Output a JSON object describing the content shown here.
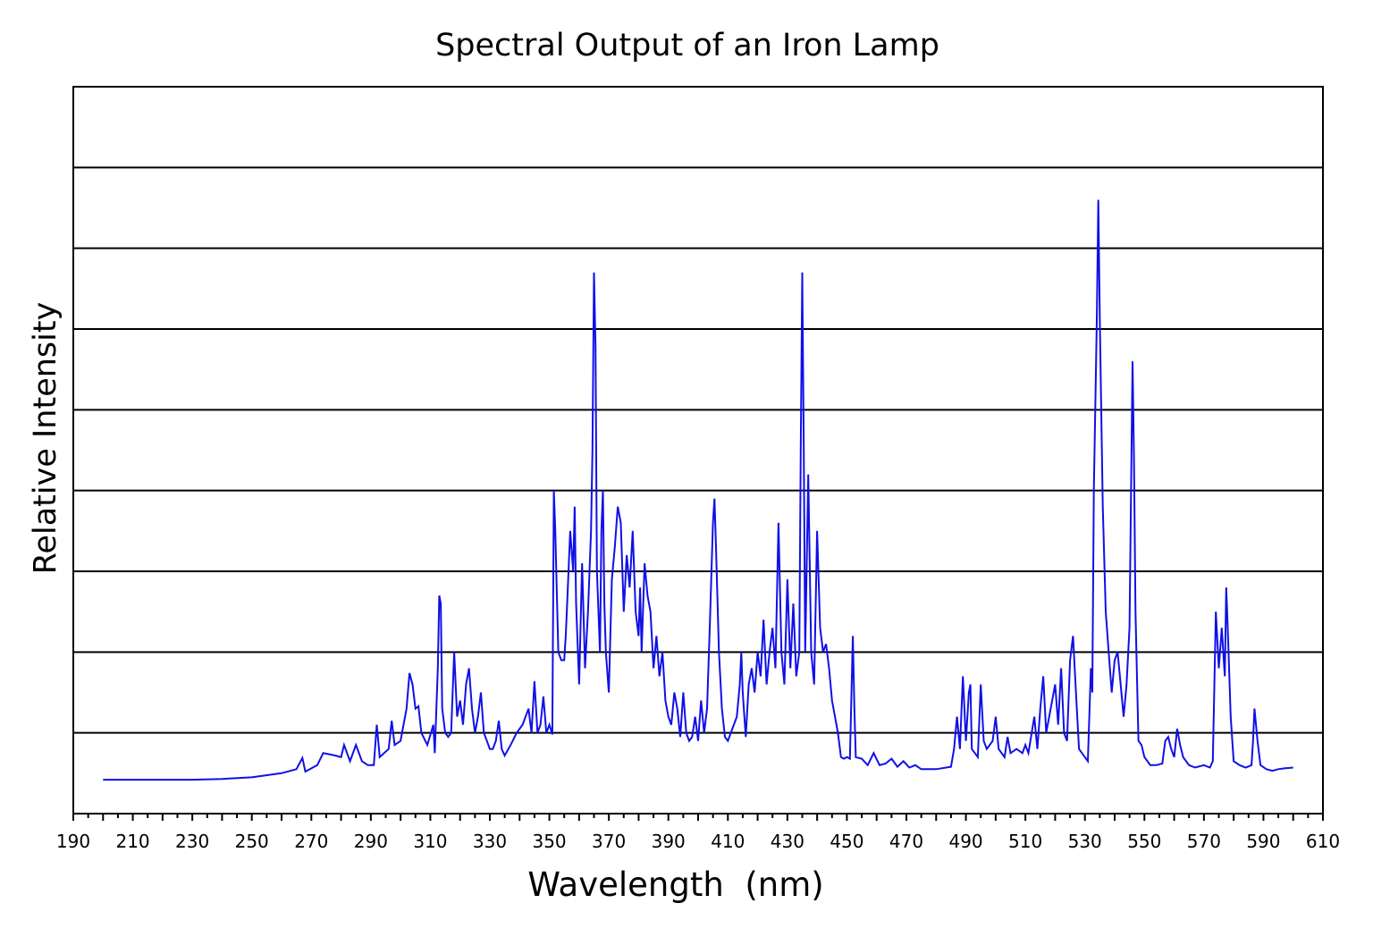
{
  "chart_data": {
    "type": "line",
    "title": "Spectral Output of an Iron Lamp",
    "xlabel": "Wavelength  (nm)",
    "ylabel": "Relative Intensity",
    "xlim": [
      190,
      610
    ],
    "ylim": [
      0,
      9
    ],
    "xticks": [
      190,
      210,
      230,
      250,
      270,
      290,
      310,
      330,
      350,
      370,
      390,
      410,
      430,
      450,
      470,
      490,
      510,
      530,
      550,
      570,
      590,
      610
    ],
    "ygrid": [
      1,
      2,
      3,
      4,
      5,
      6,
      7,
      8
    ],
    "grid": "horizontal",
    "line_color": "#1010e8",
    "series": [
      {
        "x": [
          200,
          230,
          240,
          250,
          260,
          265,
          267,
          268,
          272,
          274,
          278,
          280,
          281,
          283,
          285,
          287,
          289,
          291,
          292,
          293,
          296,
          297,
          298,
          300,
          302,
          303,
          304,
          305,
          306,
          307,
          309,
          311,
          311.5,
          312.5,
          313,
          313.5,
          314,
          315,
          316,
          317,
          318,
          319,
          320,
          321,
          322,
          323,
          324,
          325,
          326,
          327,
          328,
          329,
          330,
          331,
          332,
          333,
          334,
          335,
          337,
          339,
          341,
          343,
          344,
          345,
          346,
          347,
          348,
          349,
          350,
          351,
          351.5,
          352,
          353,
          354,
          355,
          355.5,
          356,
          357,
          358,
          358.5,
          359,
          360,
          361,
          362,
          363,
          364,
          364.5,
          365,
          365.5,
          366,
          367,
          367.5,
          368,
          368.5,
          369,
          370,
          371,
          372,
          373,
          374,
          375,
          376,
          377,
          378,
          379,
          380,
          380.5,
          381,
          382,
          383,
          384,
          385,
          386,
          387,
          388,
          389,
          390,
          391,
          392,
          393,
          394,
          395,
          396,
          397,
          398,
          399,
          400,
          401,
          402,
          403,
          404,
          405,
          405.5,
          406,
          407,
          408,
          409,
          410,
          411,
          413,
          414,
          414.5,
          415,
          416,
          417,
          418,
          419,
          420,
          421,
          422,
          423,
          424,
          425,
          426,
          427,
          428,
          429,
          430,
          431,
          432,
          433,
          434,
          434.5,
          435,
          435.5,
          436,
          437,
          438,
          439,
          440,
          441,
          442,
          443,
          444,
          445,
          446,
          447,
          448,
          449,
          450,
          451,
          452,
          452.5,
          453,
          455,
          457,
          459,
          461,
          463,
          465,
          467,
          469,
          471,
          473,
          475,
          480,
          485,
          486,
          487,
          488,
          489,
          490,
          491,
          491.5,
          492,
          494,
          495,
          496,
          497,
          499,
          500,
          501,
          503,
          504,
          505,
          507,
          509,
          510,
          511,
          513,
          514,
          515,
          516,
          517,
          519,
          520,
          521,
          522,
          523,
          524,
          525,
          526,
          527,
          528,
          530,
          531,
          532,
          532.5,
          533,
          534,
          534.5,
          535,
          536,
          537,
          538,
          539,
          540,
          541,
          542,
          543,
          544,
          545,
          546,
          546.5,
          547,
          548,
          549,
          550,
          552,
          554,
          556,
          557,
          558,
          559,
          560,
          561,
          562,
          563,
          565,
          567,
          570,
          572,
          573,
          574,
          575,
          576,
          577,
          577.5,
          578,
          579,
          580,
          582,
          584,
          586,
          586.5,
          587,
          588,
          589,
          591,
          593,
          595,
          597,
          600
        ],
        "y": [
          0.42,
          0.42,
          0.43,
          0.45,
          0.5,
          0.55,
          0.69,
          0.52,
          0.6,
          0.75,
          0.72,
          0.7,
          0.85,
          0.65,
          0.85,
          0.65,
          0.6,
          0.6,
          1.1,
          0.7,
          0.8,
          1.15,
          0.85,
          0.9,
          1.3,
          1.74,
          1.6,
          1.3,
          1.33,
          1.0,
          0.85,
          1.1,
          0.75,
          1.8,
          2.7,
          2.6,
          1.3,
          1.0,
          0.95,
          1.0,
          2.0,
          1.2,
          1.4,
          1.1,
          1.6,
          1.8,
          1.3,
          1.0,
          1.2,
          1.5,
          1.0,
          0.9,
          0.8,
          0.8,
          0.9,
          1.15,
          0.8,
          0.72,
          0.85,
          1.0,
          1.1,
          1.3,
          1.0,
          1.64,
          1.0,
          1.1,
          1.45,
          1.0,
          1.1,
          0.98,
          4.0,
          3.5,
          2.0,
          1.9,
          1.9,
          2.2,
          2.6,
          3.5,
          3.0,
          3.8,
          2.6,
          1.6,
          3.1,
          1.8,
          2.5,
          3.5,
          4.5,
          6.7,
          5.8,
          3.0,
          2.0,
          3.5,
          4.0,
          2.6,
          2.0,
          1.5,
          2.9,
          3.3,
          3.8,
          3.6,
          2.5,
          3.2,
          2.8,
          3.5,
          2.5,
          2.2,
          2.8,
          2.0,
          3.1,
          2.7,
          2.5,
          1.8,
          2.2,
          1.7,
          2.0,
          1.4,
          1.2,
          1.1,
          1.5,
          1.3,
          0.95,
          1.5,
          1.0,
          0.9,
          0.95,
          1.2,
          0.9,
          1.4,
          1.0,
          1.3,
          2.4,
          3.6,
          3.9,
          3.3,
          2.0,
          1.3,
          0.95,
          0.9,
          1.0,
          1.2,
          1.6,
          2.0,
          1.5,
          0.95,
          1.6,
          1.8,
          1.5,
          2.0,
          1.7,
          2.4,
          1.6,
          2.0,
          2.3,
          1.8,
          3.6,
          2.0,
          1.6,
          2.9,
          1.8,
          2.6,
          1.7,
          2.0,
          4.5,
          6.7,
          4.5,
          2.0,
          4.2,
          2.0,
          1.6,
          3.5,
          2.3,
          2.0,
          2.1,
          1.8,
          1.4,
          1.2,
          1.0,
          0.7,
          0.68,
          0.7,
          0.68,
          2.2,
          1.3,
          0.7,
          0.68,
          0.6,
          0.75,
          0.6,
          0.62,
          0.68,
          0.58,
          0.65,
          0.57,
          0.6,
          0.55,
          0.55,
          0.58,
          0.8,
          1.2,
          0.8,
          1.7,
          0.9,
          1.5,
          1.6,
          0.8,
          0.7,
          1.6,
          0.9,
          0.8,
          0.9,
          1.2,
          0.8,
          0.7,
          0.95,
          0.75,
          0.8,
          0.75,
          0.85,
          0.75,
          1.2,
          0.8,
          1.3,
          1.7,
          1.0,
          1.4,
          1.6,
          1.1,
          1.8,
          1.0,
          0.9,
          1.9,
          2.2,
          1.5,
          0.8,
          0.7,
          0.65,
          1.8,
          1.5,
          4.0,
          6.1,
          7.6,
          6.1,
          3.8,
          2.5,
          2.0,
          1.5,
          1.9,
          2.0,
          1.6,
          1.2,
          1.6,
          2.3,
          5.6,
          4.4,
          2.5,
          0.9,
          0.85,
          0.7,
          0.6,
          0.6,
          0.62,
          0.9,
          0.95,
          0.8,
          0.7,
          1.05,
          0.85,
          0.7,
          0.6,
          0.57,
          0.6,
          0.57,
          0.65,
          2.5,
          1.8,
          2.3,
          1.7,
          2.8,
          2.3,
          1.2,
          0.65,
          0.6,
          0.57,
          0.6,
          0.9,
          1.3,
          0.9,
          0.6,
          0.55,
          0.53,
          0.55,
          0.56,
          0.57
        ]
      }
    ]
  }
}
